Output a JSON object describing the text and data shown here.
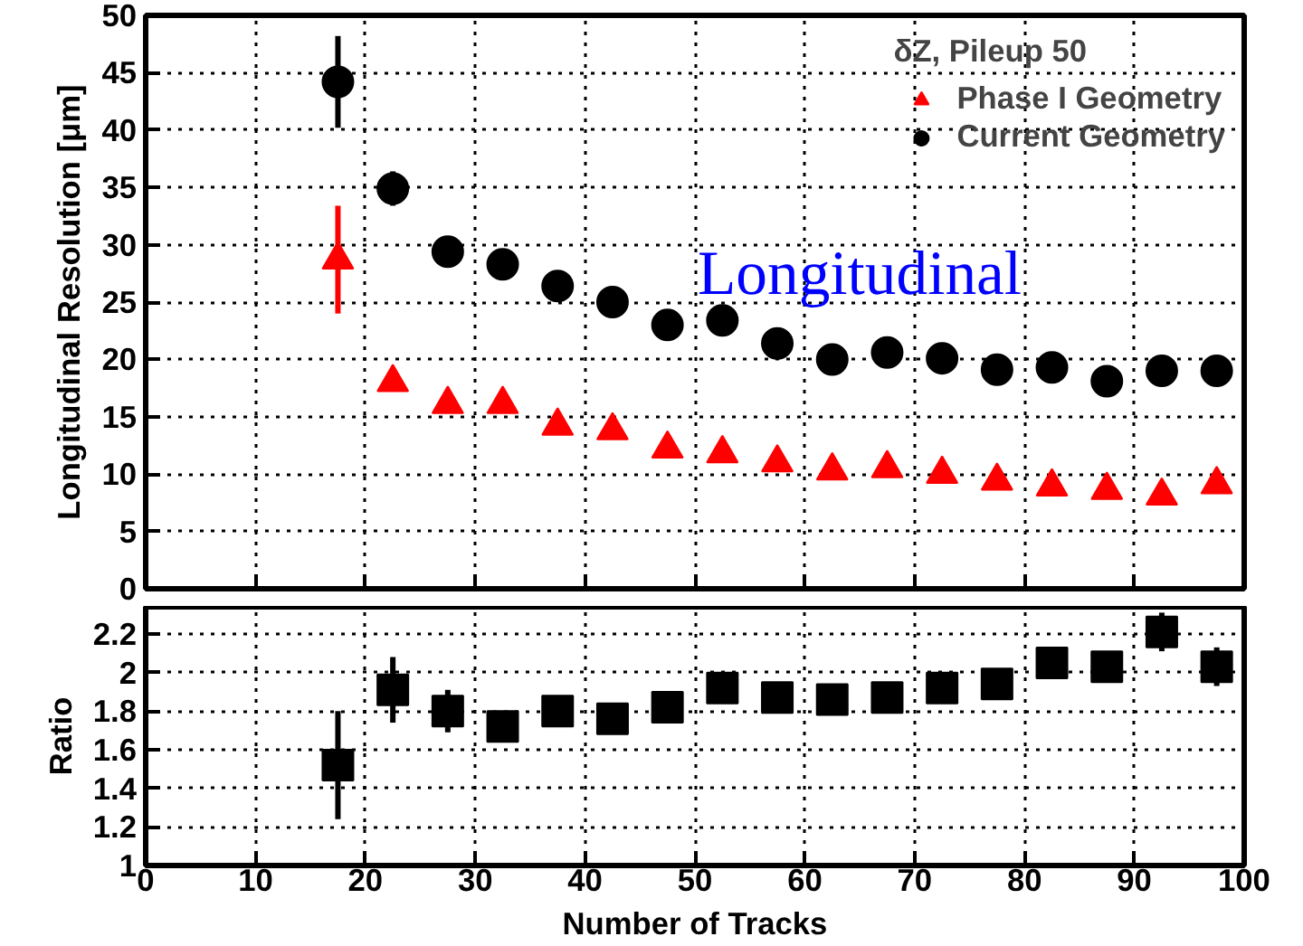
{
  "chart_data": [
    {
      "type": "scatter",
      "ylabel": "Longitudinal Resolution [μm]",
      "legend_title": "δZ, Pileup 50",
      "annotations": [
        "Longitudinal"
      ],
      "x": [
        17.5,
        22.5,
        27.5,
        32.5,
        37.5,
        42.5,
        47.5,
        52.5,
        57.5,
        62.5,
        67.5,
        72.5,
        77.5,
        82.5,
        87.5,
        92.5,
        97.5
      ],
      "xlim": [
        0,
        100
      ],
      "xticks": [
        0,
        10,
        20,
        30,
        40,
        50,
        60,
        70,
        80,
        90,
        100
      ],
      "ylim": [
        0,
        50
      ],
      "yticks": [
        0,
        5,
        10,
        15,
        20,
        25,
        30,
        35,
        40,
        45,
        50
      ],
      "tick_labels": "y",
      "grid": true,
      "legend": "top right",
      "series": [
        {
          "name": "Phase I Geometry",
          "color": "#ff0000",
          "marker": "triangle",
          "values": [
            28.7,
            18.0,
            16.1,
            16.1,
            14.2,
            13.8,
            12.2,
            11.8,
            11.0,
            10.3,
            10.5,
            10.0,
            9.4,
            8.9,
            8.6,
            8.1,
            9.1
          ],
          "errors": [
            4.7,
            null,
            null,
            null,
            null,
            null,
            null,
            null,
            null,
            null,
            null,
            null,
            null,
            null,
            null,
            null,
            null
          ]
        },
        {
          "name": "Current Geometry",
          "color": "#000000",
          "marker": "circle",
          "values": [
            44.2,
            34.9,
            29.4,
            28.3,
            26.4,
            25.0,
            23.0,
            23.4,
            21.4,
            20.0,
            20.6,
            20.1,
            19.1,
            19.3,
            18.1,
            19.0,
            19.0
          ],
          "errors": [
            4.0,
            1.5,
            null,
            null,
            null,
            null,
            null,
            null,
            null,
            null,
            null,
            null,
            null,
            null,
            null,
            null,
            null
          ]
        }
      ]
    },
    {
      "type": "scatter",
      "xlabel": "Number of Tracks",
      "ylabel": "Ratio",
      "x": [
        17.5,
        22.5,
        27.5,
        32.5,
        37.5,
        42.5,
        47.5,
        52.5,
        57.5,
        62.5,
        67.5,
        72.5,
        77.5,
        82.5,
        87.5,
        92.5,
        97.5
      ],
      "xlim": [
        0,
        100
      ],
      "xticks": [
        0,
        10,
        20,
        30,
        40,
        50,
        60,
        70,
        80,
        90,
        100
      ],
      "ylim": [
        1,
        2.34
      ],
      "yticks": [
        1,
        1.2,
        1.4,
        1.6,
        1.8,
        2,
        2.2
      ],
      "grid": true,
      "marker": "square",
      "color": "#000000",
      "values": [
        1.52,
        1.91,
        1.8,
        1.72,
        1.8,
        1.76,
        1.82,
        1.92,
        1.87,
        1.86,
        1.87,
        1.92,
        1.94,
        2.05,
        2.03,
        2.21,
        2.03
      ],
      "errors": [
        0.28,
        0.17,
        0.11,
        null,
        null,
        null,
        null,
        null,
        null,
        null,
        null,
        null,
        null,
        null,
        null,
        0.1,
        0.1
      ]
    }
  ]
}
